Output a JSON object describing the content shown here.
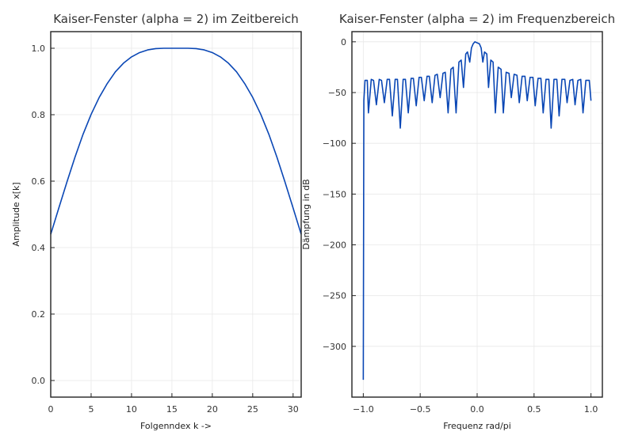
{
  "chart_data": [
    {
      "type": "line",
      "title": "Kaiser-Fenster (alpha = 2) im Zeitbereich",
      "xlabel": "Folgenndex k ->",
      "ylabel": "Amplitude x[k]",
      "xlim": [
        0,
        31
      ],
      "ylim": [
        -0.05,
        1.05
      ],
      "xticks": [
        "0",
        "5",
        "10",
        "15",
        "20",
        "25",
        "30"
      ],
      "yticks": [
        "0.0",
        "0.2",
        "0.4",
        "0.6",
        "0.8",
        "1.0"
      ],
      "grid": true,
      "series": [
        {
          "color": "#0a47b5",
          "x": [
            0,
            1,
            2,
            3,
            4,
            5,
            6,
            7,
            8,
            9,
            10,
            11,
            12,
            13,
            14,
            15,
            16,
            17,
            18,
            19,
            20,
            21,
            22,
            23,
            24,
            25,
            26,
            27,
            28,
            29,
            30,
            31
          ],
          "y": [
            0.44,
            0.519,
            0.597,
            0.672,
            0.741,
            0.801,
            0.852,
            0.894,
            0.929,
            0.955,
            0.974,
            0.987,
            0.995,
            0.999,
            1.0,
            1.0,
            1.0,
            1.0,
            0.999,
            0.995,
            0.987,
            0.974,
            0.955,
            0.929,
            0.894,
            0.852,
            0.801,
            0.741,
            0.672,
            0.597,
            0.519,
            0.44
          ]
        }
      ]
    },
    {
      "type": "line",
      "title": "Kaiser-Fenster (alpha = 2) im Frequenzbereich",
      "xlabel": "Frequenz rad/pi",
      "ylabel": "Dämpfung in dB",
      "xlim": [
        -1.1,
        1.1
      ],
      "ylim": [
        -350,
        10
      ],
      "xticks": [
        "−1.0",
        "−0.5",
        "0.0",
        "0.5",
        "1.0"
      ],
      "yticks": [
        "0",
        "−50",
        "−100",
        "−150",
        "−200",
        "−250",
        "−300"
      ],
      "grid": true,
      "series": [
        {
          "color": "#0a47b5",
          "x": [
            -1.0,
            -0.995,
            -0.985,
            -0.965,
            -0.955,
            -0.93,
            -0.91,
            -0.885,
            -0.86,
            -0.84,
            -0.815,
            -0.79,
            -0.77,
            -0.745,
            -0.72,
            -0.7,
            -0.675,
            -0.65,
            -0.63,
            -0.605,
            -0.58,
            -0.56,
            -0.535,
            -0.51,
            -0.49,
            -0.465,
            -0.44,
            -0.42,
            -0.395,
            -0.37,
            -0.35,
            -0.325,
            -0.3,
            -0.28,
            -0.255,
            -0.23,
            -0.21,
            -0.185,
            -0.16,
            -0.14,
            -0.12,
            -0.1,
            -0.085,
            -0.065,
            -0.05,
            -0.035,
            -0.02,
            0.0,
            0.02,
            0.035,
            0.05,
            0.065,
            0.085,
            0.1,
            0.12,
            0.14,
            0.16,
            0.185,
            0.21,
            0.23,
            0.255,
            0.28,
            0.3,
            0.325,
            0.35,
            0.37,
            0.395,
            0.42,
            0.44,
            0.465,
            0.49,
            0.51,
            0.535,
            0.56,
            0.58,
            0.605,
            0.63,
            0.65,
            0.675,
            0.7,
            0.72,
            0.745,
            0.77,
            0.79,
            0.815,
            0.84,
            0.86,
            0.885,
            0.91,
            0.93,
            0.955,
            0.965,
            0.985,
            1.0
          ],
          "y": [
            -333,
            -58,
            -38,
            -38,
            -70,
            -37,
            -38,
            -62,
            -37,
            -38,
            -60,
            -37,
            -37,
            -73,
            -37,
            -37,
            -85,
            -37,
            -37,
            -70,
            -36,
            -36,
            -63,
            -35,
            -35,
            -58,
            -34,
            -34,
            -60,
            -33,
            -32,
            -55,
            -31,
            -30,
            -70,
            -27,
            -25,
            -70,
            -20,
            -18,
            -45,
            -12,
            -10,
            -20,
            -6,
            -2,
            0,
            -1,
            -2,
            -6,
            -20,
            -10,
            -12,
            -45,
            -18,
            -20,
            -70,
            -25,
            -27,
            -70,
            -30,
            -31,
            -55,
            -32,
            -33,
            -60,
            -34,
            -34,
            -58,
            -35,
            -35,
            -63,
            -36,
            -36,
            -70,
            -37,
            -37,
            -85,
            -37,
            -37,
            -73,
            -37,
            -37,
            -60,
            -38,
            -37,
            -62,
            -38,
            -37,
            -70,
            -38,
            -38,
            -38,
            -58
          ]
        }
      ]
    }
  ]
}
